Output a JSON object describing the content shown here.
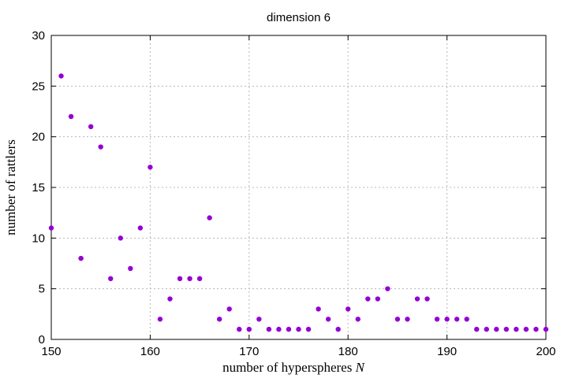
{
  "chart_data": {
    "type": "scatter",
    "title": "dimension 6",
    "xlabel": "number of hyperspheres",
    "xlabel_var": "N",
    "ylabel": "number of rattlers",
    "xlim": [
      150,
      200
    ],
    "ylim": [
      0,
      30
    ],
    "xticks": [
      150,
      160,
      170,
      180,
      190,
      200
    ],
    "yticks": [
      0,
      5,
      10,
      15,
      20,
      25,
      30
    ],
    "grid": true,
    "marker_color": "#9400d3",
    "x": [
      150,
      151,
      152,
      153,
      154,
      155,
      156,
      157,
      158,
      159,
      160,
      161,
      162,
      163,
      164,
      165,
      166,
      167,
      168,
      169,
      170,
      171,
      172,
      173,
      174,
      175,
      176,
      177,
      178,
      179,
      180,
      181,
      182,
      183,
      184,
      185,
      186,
      187,
      188,
      189,
      190,
      191,
      192,
      193,
      194,
      195,
      196,
      197,
      198,
      199,
      200
    ],
    "y": [
      11,
      26,
      22,
      8,
      21,
      19,
      6,
      10,
      7,
      11,
      17,
      2,
      4,
      6,
      6,
      6,
      12,
      2,
      3,
      1,
      1,
      2,
      1,
      1,
      1,
      1,
      1,
      3,
      2,
      1,
      3,
      2,
      4,
      4,
      5,
      2,
      2,
      4,
      4,
      2,
      2,
      2,
      2,
      1,
      1,
      1,
      1,
      1,
      1,
      1,
      1
    ]
  }
}
